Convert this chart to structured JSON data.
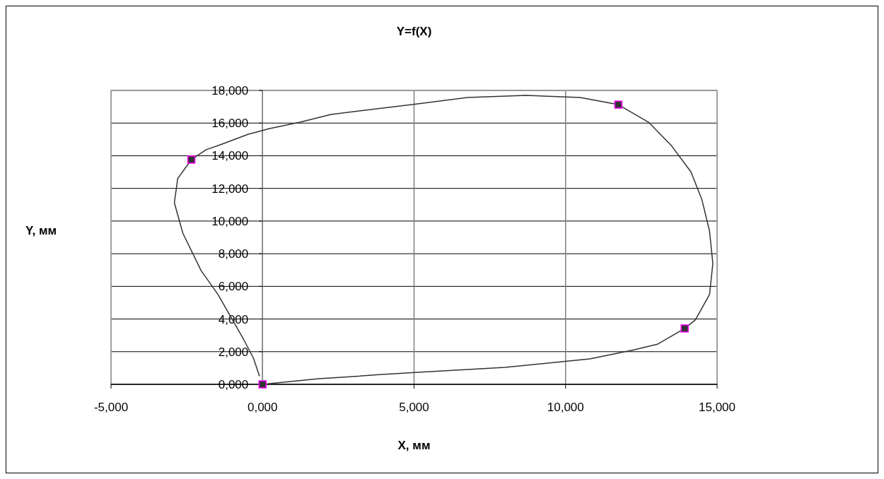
{
  "chart_data": {
    "type": "line",
    "title": "Y=f(X)",
    "xlabel": "X, мм",
    "ylabel": "Y, мм",
    "xlim": [
      -5,
      15
    ],
    "ylim": [
      0,
      18
    ],
    "xticks": [
      {
        "value": -5,
        "label": "-5,000"
      },
      {
        "value": 0,
        "label": "0,000"
      },
      {
        "value": 5,
        "label": "5,000"
      },
      {
        "value": 10,
        "label": "10,000"
      },
      {
        "value": 15,
        "label": "15,000"
      }
    ],
    "yticks": [
      {
        "value": 0,
        "label": "0,000"
      },
      {
        "value": 2,
        "label": "2,000"
      },
      {
        "value": 4,
        "label": "4,000"
      },
      {
        "value": 6,
        "label": "6,000"
      },
      {
        "value": 8,
        "label": "8,000"
      },
      {
        "value": 10,
        "label": "10,000"
      },
      {
        "value": 12,
        "label": "12,000"
      },
      {
        "value": 14,
        "label": "14,000"
      },
      {
        "value": 16,
        "label": "16,000"
      },
      {
        "value": 18,
        "label": "18,000"
      }
    ],
    "grid": true,
    "series": [
      {
        "color": "#333333",
        "marker": "none",
        "line_style": "solid",
        "x": [
          0,
          1.86,
          2.8,
          3.85,
          5.12,
          8.0,
          10.8,
          12.28,
          13.05,
          13.93,
          14.28,
          14.75,
          14.86,
          14.75,
          14.5,
          14.14,
          13.5,
          12.74,
          11.74,
          10.48,
          8.69,
          6.76,
          5.12,
          2.26,
          1.23,
          0.23,
          -0.47,
          -1.4,
          -1.86,
          -2.35,
          -2.8,
          -2.91,
          -2.63,
          -2.03,
          -1.47,
          -0.63,
          -0.3,
          -0.1
        ],
        "values": [
          0,
          0.35,
          0.45,
          0.6,
          0.74,
          1.04,
          1.56,
          2.12,
          2.47,
          3.42,
          3.94,
          5.5,
          7.4,
          9.39,
          11.3,
          13.0,
          14.6,
          16.05,
          17.13,
          17.57,
          17.7,
          17.57,
          17.18,
          16.53,
          16.05,
          15.66,
          15.32,
          14.67,
          14.37,
          13.76,
          12.6,
          11.12,
          9.26,
          6.97,
          5.5,
          2.77,
          1.6,
          0.5
        ]
      },
      {
        "type": "scatter",
        "color": "#333333",
        "marker": "square",
        "x": [
          0,
          13.93,
          11.74,
          -2.35
        ],
        "values": [
          0,
          3.42,
          17.13,
          13.76
        ]
      }
    ]
  }
}
